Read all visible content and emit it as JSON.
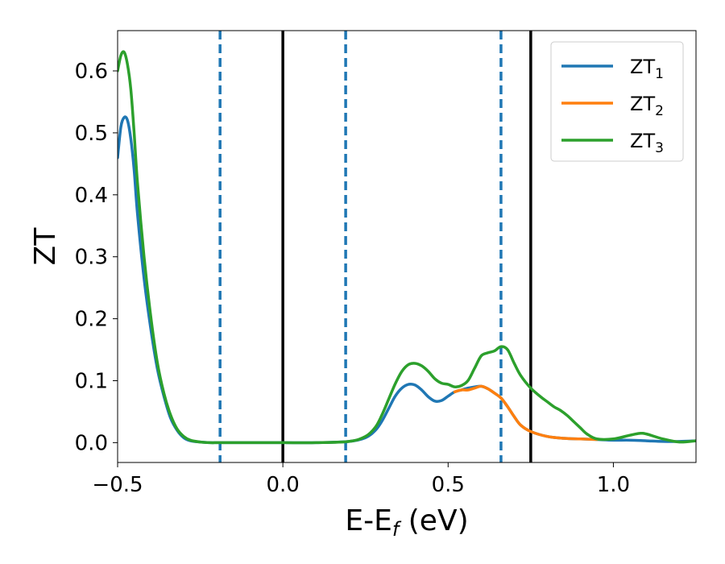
{
  "chart_data": {
    "type": "line",
    "xlabel": {
      "main": "E-E",
      "sub": "f",
      "unit": " (eV)"
    },
    "ylabel": "ZT",
    "xlim": [
      -0.5,
      1.25
    ],
    "ylim": [
      -0.032,
      0.665
    ],
    "xticks": [
      -0.5,
      0.0,
      0.5,
      1.0
    ],
    "xtick_labels": [
      "−0.5",
      "0.0",
      "0.5",
      "1.0"
    ],
    "yticks": [
      0.0,
      0.1,
      0.2,
      0.3,
      0.4,
      0.5,
      0.6
    ],
    "ytick_labels": [
      "0.0",
      "0.1",
      "0.2",
      "0.3",
      "0.4",
      "0.5",
      "0.6"
    ],
    "grid": false,
    "legend": "top-right",
    "vlines_solid": [
      0.0,
      0.75
    ],
    "vlines_dashed": [
      -0.19,
      0.19,
      0.66
    ],
    "series": [
      {
        "name": "ZT",
        "sub": "1",
        "color": "#1f77b4",
        "x": [
          -0.5,
          -0.49,
          -0.48,
          -0.47,
          -0.46,
          -0.45,
          -0.44,
          -0.42,
          -0.4,
          -0.38,
          -0.36,
          -0.34,
          -0.32,
          -0.3,
          -0.28,
          -0.25,
          -0.22,
          -0.19,
          -0.1,
          0.0,
          0.1,
          0.2,
          0.25,
          0.28,
          0.3,
          0.32,
          0.34,
          0.36,
          0.38,
          0.4,
          0.42,
          0.44,
          0.46,
          0.48,
          0.5,
          0.52,
          0.54,
          0.56,
          0.58,
          0.6,
          0.62,
          0.64,
          0.66,
          0.68,
          0.7,
          0.72,
          0.75,
          0.8,
          0.85,
          0.9,
          0.95,
          1.0,
          1.05,
          1.1,
          1.15,
          1.2,
          1.25
        ],
        "y": [
          0.46,
          0.51,
          0.525,
          0.52,
          0.49,
          0.44,
          0.37,
          0.265,
          0.185,
          0.12,
          0.075,
          0.04,
          0.02,
          0.008,
          0.003,
          0.001,
          0.0,
          0.0,
          0.0,
          0.0,
          0.0,
          0.002,
          0.008,
          0.02,
          0.035,
          0.055,
          0.075,
          0.088,
          0.094,
          0.093,
          0.085,
          0.074,
          0.067,
          0.068,
          0.075,
          0.082,
          0.085,
          0.088,
          0.09,
          0.091,
          0.087,
          0.08,
          0.072,
          0.058,
          0.042,
          0.028,
          0.018,
          0.01,
          0.007,
          0.006,
          0.005,
          0.004,
          0.004,
          0.003,
          0.002,
          0.002,
          0.003
        ]
      },
      {
        "name": "ZT",
        "sub": "2",
        "color": "#ff7f0e",
        "x": [
          0.52,
          0.54,
          0.56,
          0.58,
          0.6,
          0.62,
          0.64,
          0.66,
          0.68,
          0.7,
          0.72,
          0.75,
          0.8,
          0.85,
          0.9,
          0.95
        ],
        "y": [
          0.082,
          0.085,
          0.085,
          0.088,
          0.091,
          0.087,
          0.08,
          0.072,
          0.058,
          0.042,
          0.028,
          0.018,
          0.01,
          0.007,
          0.006,
          0.005
        ]
      },
      {
        "name": "ZT",
        "sub": "3",
        "color": "#2ca02c",
        "x": [
          -0.5,
          -0.49,
          -0.48,
          -0.47,
          -0.46,
          -0.45,
          -0.44,
          -0.42,
          -0.4,
          -0.38,
          -0.36,
          -0.34,
          -0.32,
          -0.3,
          -0.28,
          -0.25,
          -0.22,
          -0.19,
          -0.1,
          0.0,
          0.1,
          0.2,
          0.25,
          0.28,
          0.3,
          0.32,
          0.34,
          0.36,
          0.38,
          0.4,
          0.42,
          0.44,
          0.46,
          0.48,
          0.5,
          0.52,
          0.54,
          0.56,
          0.58,
          0.6,
          0.62,
          0.64,
          0.66,
          0.68,
          0.7,
          0.72,
          0.75,
          0.78,
          0.8,
          0.82,
          0.84,
          0.86,
          0.88,
          0.9,
          0.92,
          0.95,
          1.0,
          1.05,
          1.08,
          1.1,
          1.15,
          1.2,
          1.25
        ],
        "y": [
          0.6,
          0.625,
          0.63,
          0.61,
          0.57,
          0.5,
          0.42,
          0.3,
          0.205,
          0.13,
          0.08,
          0.045,
          0.022,
          0.01,
          0.004,
          0.001,
          0.0,
          0.0,
          0.0,
          0.0,
          0.0,
          0.002,
          0.01,
          0.025,
          0.045,
          0.07,
          0.095,
          0.115,
          0.126,
          0.128,
          0.124,
          0.115,
          0.103,
          0.096,
          0.094,
          0.09,
          0.092,
          0.1,
          0.12,
          0.14,
          0.145,
          0.148,
          0.155,
          0.15,
          0.128,
          0.108,
          0.088,
          0.074,
          0.066,
          0.058,
          0.052,
          0.044,
          0.034,
          0.024,
          0.014,
          0.006,
          0.006,
          0.012,
          0.015,
          0.014,
          0.006,
          0.001,
          0.003
        ]
      }
    ]
  }
}
